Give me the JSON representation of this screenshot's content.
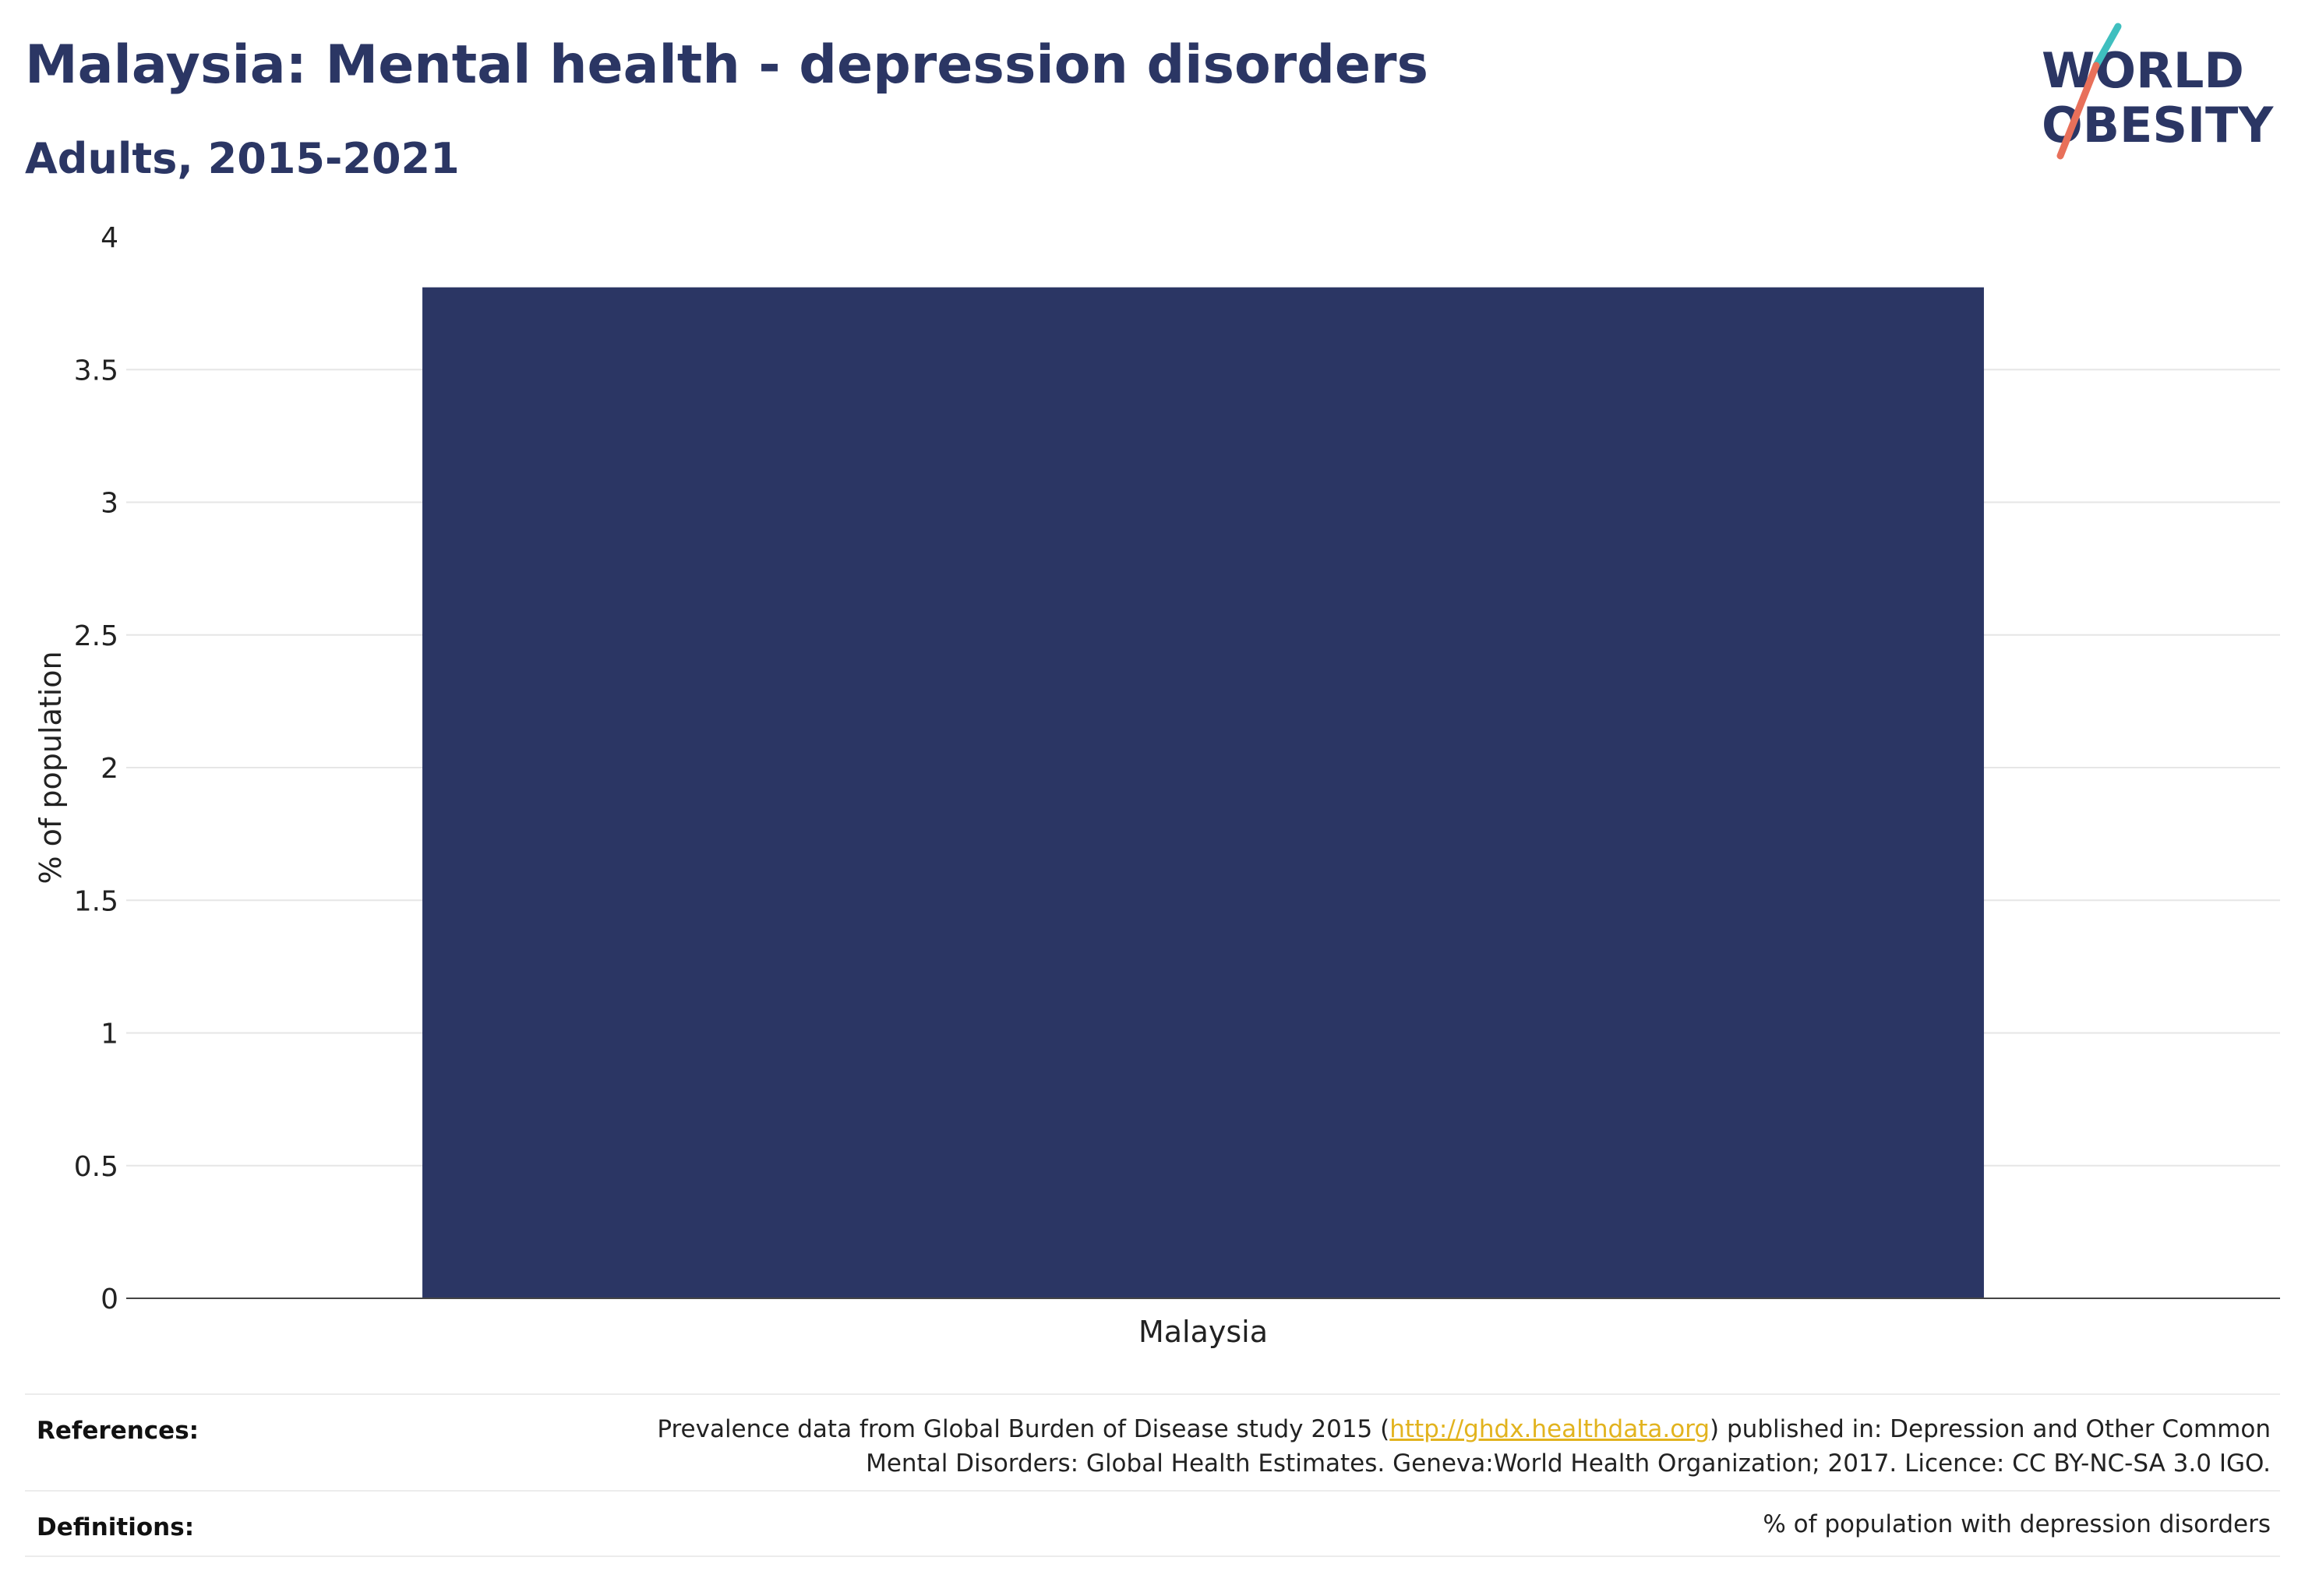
{
  "header": {
    "title": "Malaysia: Mental health - depression disorders",
    "subtitle": "Adults, 2015-2021"
  },
  "logo": {
    "line1": "WORLD",
    "line2": "OBESITY",
    "colors": {
      "text": "#2b3664",
      "slash_teal": "#3fbfbf",
      "slash_coral": "#e8705a"
    }
  },
  "chart_data": {
    "type": "bar",
    "categories": [
      "Malaysia"
    ],
    "values": [
      3.81
    ],
    "xlabel": "",
    "ylabel": "% of population",
    "ylim": [
      0,
      4
    ],
    "yticks": [
      0,
      0.5,
      1,
      1.5,
      2,
      2.5,
      3,
      3.5,
      4
    ],
    "grid": true,
    "bar_color": "#2b3664"
  },
  "footer": {
    "references_label": "References:",
    "references_text_before": "Prevalence data from Global Burden of Disease study 2015 (",
    "references_link": "http://ghdx.healthdata.org",
    "references_text_after": ") published in: Depression and Other Common",
    "references_line2": "Mental Disorders: Global Health Estimates. Geneva:World Health Organization; 2017. Licence: CC BY-NC-SA 3.0 IGO.",
    "definitions_label": "Definitions:",
    "definitions_text": "% of population with depression disorders"
  }
}
